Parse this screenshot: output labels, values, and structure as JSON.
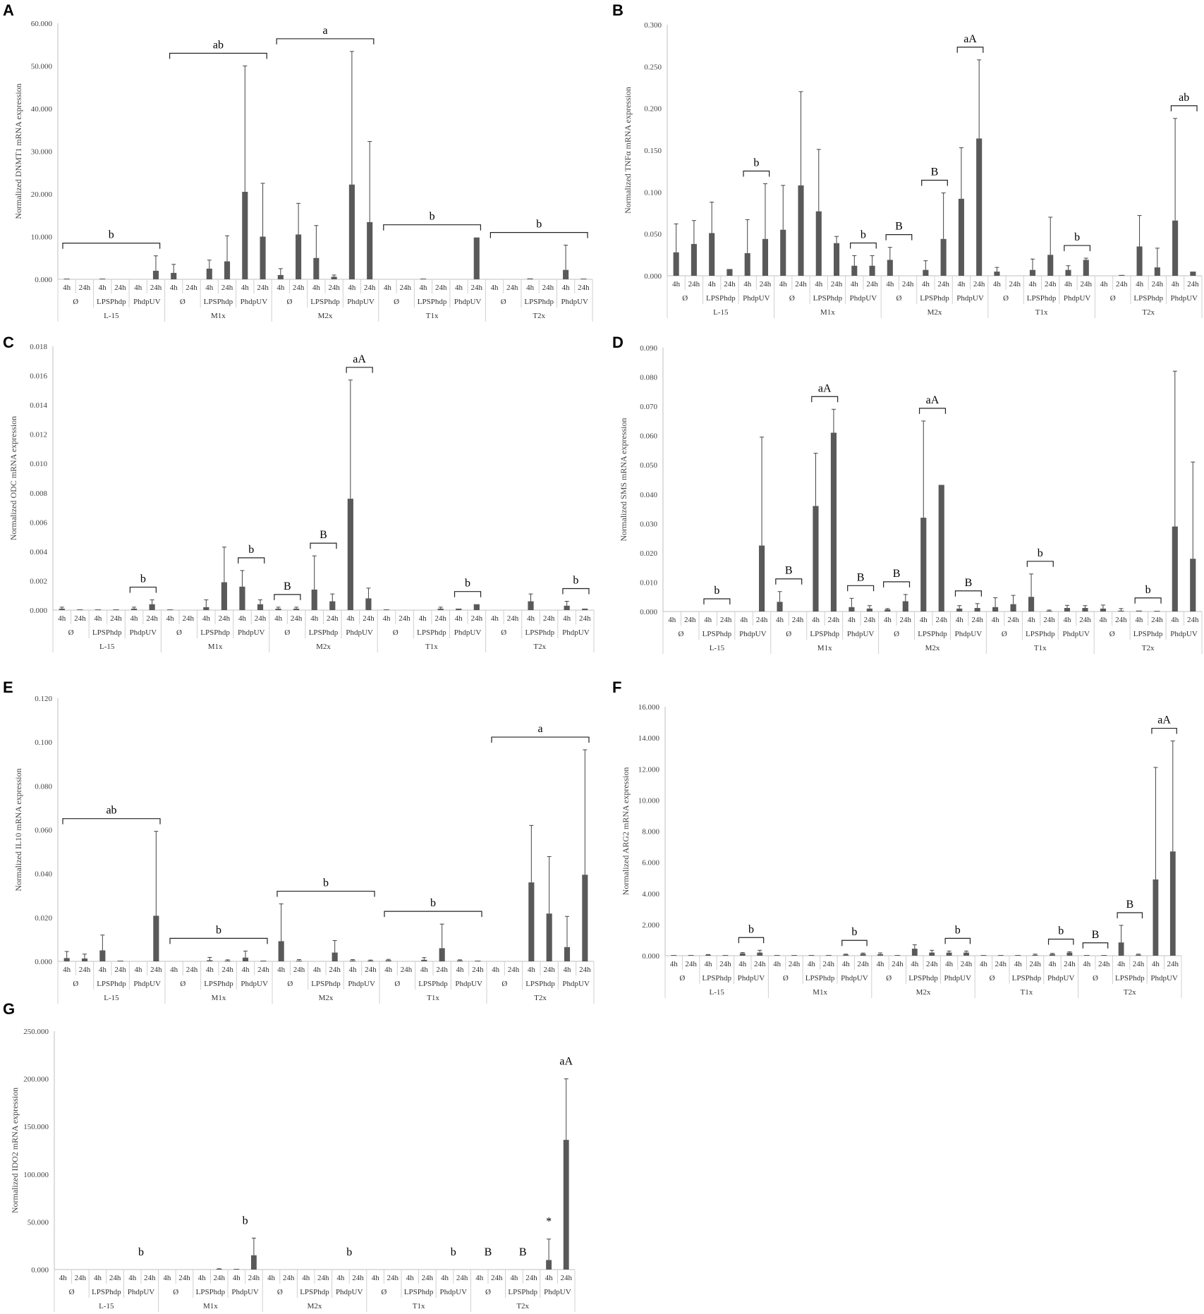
{
  "figure": {
    "x_axis": {
      "time_labels": [
        "4h",
        "24h"
      ],
      "stimuli": [
        "Ø",
        "LPSPhdp",
        "PhdpUV"
      ],
      "media": [
        "L-15",
        "M1x",
        "M2x",
        "T1x",
        "T2x"
      ]
    }
  },
  "chart_data": [
    {
      "panel": "A",
      "type": "bar",
      "ylabel": "Normalized DNMT1 mRNA expression",
      "ylim": [
        0,
        60
      ],
      "yticks": [
        "0.000",
        "10.000",
        "20.000",
        "30.000",
        "40.000",
        "50.000",
        "60.000"
      ],
      "values": [
        0.05,
        0,
        0.1,
        0,
        0,
        2,
        1.5,
        0,
        2.5,
        4.2,
        20.5,
        10,
        1,
        10.5,
        5,
        0.6,
        22.2,
        13.4,
        0,
        0,
        0.1,
        0,
        0,
        9.8,
        0,
        0,
        0.2,
        0,
        2.2,
        0.05
      ],
      "errors": [
        0,
        0,
        0,
        0,
        0,
        3.5,
        2,
        0,
        2,
        6,
        29.5,
        12.5,
        1.5,
        7.3,
        7.6,
        0.4,
        31.2,
        18.9,
        0,
        0,
        0,
        0,
        0,
        0,
        0,
        0,
        0,
        0,
        5.8,
        0
      ],
      "annotations": [
        {
          "text": "b",
          "from": 0,
          "to": 5
        },
        {
          "text": "ab",
          "from": 6,
          "to": 11
        },
        {
          "text": "a",
          "from": 12,
          "to": 17
        },
        {
          "text": "b",
          "from": 18,
          "to": 23
        },
        {
          "text": "b",
          "from": 24,
          "to": 29
        }
      ]
    },
    {
      "panel": "B",
      "type": "bar",
      "ylabel": "Normalized TNFα mRNA expression",
      "ylim": [
        0,
        0.3
      ],
      "yticks": [
        "0.000",
        "0.050",
        "0.100",
        "0.150",
        "0.200",
        "0.250",
        "0.300"
      ],
      "values": [
        0.028,
        0.038,
        0.051,
        0.008,
        0.027,
        0.044,
        0.055,
        0.108,
        0.077,
        0.039,
        0.012,
        0.012,
        0.019,
        0,
        0.007,
        0.044,
        0.092,
        0.164,
        0.005,
        0,
        0.007,
        0.025,
        0.007,
        0.019,
        0,
        0.001,
        0.035,
        0.01,
        0.066,
        0.005
      ],
      "errors": [
        0.034,
        0.028,
        0.037,
        0,
        0.04,
        0.066,
        0.053,
        0.112,
        0.074,
        0.008,
        0.012,
        0.012,
        0.015,
        0,
        0.011,
        0.055,
        0.061,
        0.094,
        0.005,
        0,
        0.013,
        0.045,
        0.005,
        0.002,
        0,
        0,
        0.037,
        0.023,
        0.122,
        0
      ],
      "annotations": [
        {
          "text": "b",
          "from": 4,
          "to": 5
        },
        {
          "text": "b",
          "from": 10,
          "to": 11
        },
        {
          "text": "B",
          "from": 12,
          "to": 13
        },
        {
          "text": "B",
          "from": 14,
          "to": 15
        },
        {
          "text": "aA",
          "from": 16,
          "to": 17
        },
        {
          "text": "b",
          "from": 22,
          "to": 23
        },
        {
          "text": "ab",
          "from": 28,
          "to": 29
        }
      ]
    },
    {
      "panel": "C",
      "type": "bar",
      "ylabel": "Normalized ODC mRNA expression",
      "ylim": [
        0,
        0.018
      ],
      "yticks": [
        "0.000",
        "0.002",
        "0.004",
        "0.006",
        "0.008",
        "0.010",
        "0.012",
        "0.014",
        "0.016",
        "0.018"
      ],
      "values": [
        0.0001,
        3e-05,
        3e-05,
        3e-05,
        0.0001,
        0.0004,
        3e-05,
        0,
        0.0002,
        0.0019,
        0.0016,
        0.0004,
        0.0001,
        0.0001,
        0.0014,
        0.0006,
        0.0076,
        0.0008,
        3e-05,
        0,
        0,
        0.0001,
        0.0001,
        0.0004,
        0,
        0,
        0.0006,
        0,
        0.0003,
        0.0001
      ],
      "errors": [
        0.0001,
        0,
        0,
        0,
        0.0001,
        0.0003,
        0,
        0,
        0.0005,
        0.0024,
        0.0011,
        0.0003,
        0.0001,
        0.0001,
        0.0023,
        0.0005,
        0.0081,
        0.0007,
        0,
        0,
        0,
        0.0001,
        0,
        0,
        0,
        0,
        0.0005,
        0,
        0.0003,
        0
      ],
      "annotations": [
        {
          "text": "b",
          "from": 4,
          "to": 5
        },
        {
          "text": "b",
          "from": 10,
          "to": 11
        },
        {
          "text": "B",
          "from": 12,
          "to": 13
        },
        {
          "text": "B",
          "from": 14,
          "to": 15
        },
        {
          "text": "aA",
          "from": 16,
          "to": 17
        },
        {
          "text": "b",
          "from": 22,
          "to": 23
        },
        {
          "text": "b",
          "from": 28,
          "to": 29
        }
      ]
    },
    {
      "panel": "D",
      "type": "bar",
      "ylabel": "Normalized SMS mRNA expression",
      "ylim": [
        0,
        0.09
      ],
      "yticks": [
        "0.000",
        "0.010",
        "0.020",
        "0.030",
        "0.040",
        "0.050",
        "0.060",
        "0.070",
        "0.080",
        "0.090"
      ],
      "values": [
        0,
        0,
        0,
        0,
        0,
        0.0225,
        0.0033,
        0,
        0.036,
        0.061,
        0.0015,
        0.001,
        0.0007,
        0.0035,
        0.032,
        0.0432,
        0.001,
        0.0012,
        0.0015,
        0.0025,
        0.005,
        0.0002,
        0.0012,
        0.0012,
        0.001,
        0.0003,
        0.0003,
        0.0001,
        0.029,
        0.018
      ],
      "errors": [
        0,
        0,
        0,
        0,
        0,
        0.037,
        0.0035,
        0,
        0.018,
        0.008,
        0.003,
        0.001,
        0.0003,
        0.0023,
        0.033,
        0,
        0.001,
        0.0015,
        0.0032,
        0.003,
        0.0078,
        0.0003,
        0.0009,
        0.0008,
        0.0012,
        0.0007,
        0,
        0,
        0.053,
        0.033
      ],
      "annotations": [
        {
          "text": "b",
          "from": 2,
          "to": 3
        },
        {
          "text": "B",
          "from": 6,
          "to": 7
        },
        {
          "text": "aA",
          "from": 8,
          "to": 9
        },
        {
          "text": "B",
          "from": 10,
          "to": 11
        },
        {
          "text": "B",
          "from": 12,
          "to": 13
        },
        {
          "text": "aA",
          "from": 14,
          "to": 15
        },
        {
          "text": "B",
          "from": 16,
          "to": 17
        },
        {
          "text": "b",
          "from": 20,
          "to": 21
        },
        {
          "text": "b",
          "from": 26,
          "to": 27
        }
      ]
    },
    {
      "panel": "E",
      "type": "bar",
      "ylabel": "Normalized IL10 mRNA expression",
      "ylim": [
        0,
        0.12
      ],
      "yticks": [
        "0.000",
        "0.020",
        "0.040",
        "0.060",
        "0.080",
        "0.100",
        "0.120"
      ],
      "values": [
        0.0015,
        0.0013,
        0.005,
        0.0003,
        0,
        0.0208,
        0,
        0,
        0.0005,
        0.0002,
        0.0017,
        0.0001,
        0.0092,
        0.0003,
        0,
        0.004,
        0.0004,
        0.0003,
        0.0005,
        0,
        0.0007,
        0.006,
        0.0004,
        0.0002,
        0,
        0,
        0.036,
        0.0218,
        0.0065,
        0.0395
      ],
      "errors": [
        0.003,
        0.002,
        0.007,
        0,
        0,
        0.0385,
        0,
        0,
        0.0013,
        0.0005,
        0.003,
        0,
        0.017,
        0.0005,
        0,
        0.0055,
        0.0004,
        0.0003,
        0.0004,
        0,
        0.001,
        0.011,
        0.0003,
        0,
        0,
        0,
        0.026,
        0.026,
        0.014,
        0.057
      ],
      "annotations": [
        {
          "text": "ab",
          "from": 0,
          "to": 5
        },
        {
          "text": "b",
          "from": 6,
          "to": 11
        },
        {
          "text": "b",
          "from": 12,
          "to": 17
        },
        {
          "text": "b",
          "from": 18,
          "to": 23
        },
        {
          "text": "a",
          "from": 24,
          "to": 29
        }
      ]
    },
    {
      "panel": "F",
      "type": "bar",
      "ylabel": "Normalized ARG2 mRNA expression",
      "ylim": [
        0,
        16
      ],
      "yticks": [
        "0.000",
        "2.000",
        "4.000",
        "6.000",
        "8.000",
        "10.000",
        "12.000",
        "14.000",
        "16.000"
      ],
      "values": [
        0.02,
        0.01,
        0.05,
        0.01,
        0.15,
        0.2,
        0.02,
        0.01,
        0.02,
        0.01,
        0.07,
        0.12,
        0.1,
        0.01,
        0.45,
        0.2,
        0.2,
        0.2,
        0.01,
        0.01,
        0.01,
        0.05,
        0.1,
        0.2,
        0.01,
        0.01,
        0.85,
        0.06,
        4.9,
        6.7
      ],
      "errors": [
        0,
        0,
        0.02,
        0,
        0.05,
        0.15,
        0,
        0,
        0,
        0,
        0.03,
        0.05,
        0.08,
        0,
        0.25,
        0.15,
        0.1,
        0.1,
        0,
        0,
        0,
        0.05,
        0.05,
        0.05,
        0,
        0,
        1.1,
        0.04,
        7.2,
        7.1
      ],
      "annotations": [
        {
          "text": "b",
          "from": 4,
          "to": 5
        },
        {
          "text": "b",
          "from": 10,
          "to": 11
        },
        {
          "text": "b",
          "from": 16,
          "to": 17
        },
        {
          "text": "b",
          "from": 22,
          "to": 23
        },
        {
          "text": "B",
          "from": 24,
          "to": 25
        },
        {
          "text": "B",
          "from": 26,
          "to": 27
        },
        {
          "text": "aA",
          "from": 28,
          "to": 29
        }
      ]
    },
    {
      "panel": "G",
      "type": "bar",
      "ylabel": "Normalized IDO2 mRNA expression",
      "ylim": [
        0,
        250
      ],
      "yticks": [
        "0.000",
        "50.000",
        "100.000",
        "150.000",
        "200.000",
        "250.000"
      ],
      "values": [
        0,
        0,
        0,
        0,
        0,
        0,
        0,
        0,
        0,
        0.5,
        0.2,
        15,
        0,
        0,
        0,
        0,
        0,
        0,
        0,
        0,
        0,
        0,
        0,
        0,
        0,
        0,
        0,
        0,
        10,
        136
      ],
      "errors": [
        0,
        0,
        0,
        0,
        0,
        0,
        0,
        0,
        0,
        0.3,
        0,
        18,
        0,
        0,
        0,
        0,
        0,
        0,
        0,
        0,
        0,
        0,
        0,
        0,
        0,
        0,
        0,
        0,
        22,
        64
      ],
      "annotations": [
        {
          "text": "b",
          "from": 4,
          "to": 5,
          "style": "label"
        },
        {
          "text": "b",
          "from": 10,
          "to": 11,
          "style": "label"
        },
        {
          "text": "b",
          "from": 16,
          "to": 17,
          "style": "label"
        },
        {
          "text": "b",
          "from": 22,
          "to": 23,
          "style": "label"
        },
        {
          "text": "B",
          "from": 24,
          "to": 25,
          "style": "label"
        },
        {
          "text": "B",
          "from": 26,
          "to": 27,
          "style": "label"
        },
        {
          "text": "*",
          "from": 28,
          "to": 28,
          "style": "label"
        },
        {
          "text": "aA",
          "from": 29,
          "to": 29,
          "style": "label"
        }
      ]
    }
  ]
}
